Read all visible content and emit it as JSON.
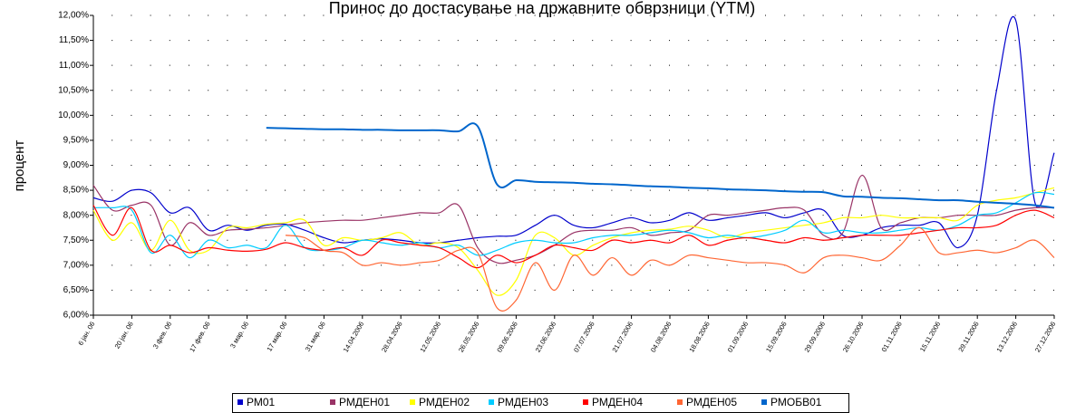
{
  "chart_data": {
    "type": "line",
    "title": "Принос до достасување на државните обврзници (YTM)",
    "y_label": "процент",
    "categories": [
      "6 јан. 06",
      null,
      "20 јан. 06",
      null,
      "3 фев. 06",
      null,
      "17 фев. 06",
      null,
      "3 мар. 06",
      null,
      "17 мар. 06",
      null,
      "31 мар. 06",
      null,
      "14.04.2006",
      null,
      "28.04.2006",
      null,
      "12.05.2006",
      null,
      "26.05.2006",
      null,
      "09.06.2006",
      null,
      "23.06.2006",
      null,
      "07.07.2006",
      null,
      "21.07.2006",
      null,
      "04.08.2006",
      null,
      "18.08.2006",
      null,
      "01.09.2006",
      null,
      "15.09.2006",
      null,
      "29.09.2006",
      null,
      "26.10.2006",
      null,
      "01.11.2006",
      null,
      "15.11.2006",
      null,
      "29.11.2006",
      null,
      "13.12.2006",
      null,
      "27.12.2006"
    ],
    "ylim": [
      6,
      12
    ],
    "yticks": [
      {
        "value": 6,
        "label": "6,00%"
      },
      {
        "value": 6.5,
        "label": "6,50%"
      },
      {
        "value": 7,
        "label": "7,00%"
      },
      {
        "value": 7.5,
        "label": "7,50%"
      },
      {
        "value": 8,
        "label": "8,00%"
      },
      {
        "value": 8.5,
        "label": "8,50%"
      },
      {
        "value": 9,
        "label": "9,00%"
      },
      {
        "value": 9.5,
        "label": "9,50%"
      },
      {
        "value": 10,
        "label": "10,00%"
      },
      {
        "value": 10.5,
        "label": "10,50%"
      },
      {
        "value": 11,
        "label": "11,00%"
      },
      {
        "value": 11.5,
        "label": "11,50%"
      },
      {
        "value": 12,
        "label": "12,00%"
      }
    ],
    "grid": true,
    "legend": "bottom",
    "series": [
      {
        "name": "РМ01",
        "color": "#0000cc",
        "values": [
          8.35,
          8.28,
          8.5,
          8.45,
          8.05,
          8.15,
          7.7,
          7.8,
          7.7,
          7.8,
          7.82,
          7.7,
          7.55,
          7.45,
          7.5,
          7.53,
          7.5,
          7.45,
          7.45,
          7.5,
          7.55,
          7.58,
          7.6,
          7.8,
          8.0,
          7.8,
          7.75,
          7.85,
          7.95,
          7.85,
          7.9,
          8.05,
          7.9,
          7.95,
          8.0,
          8.05,
          7.95,
          8.05,
          8.1,
          7.6,
          7.6,
          7.75,
          7.8,
          7.8,
          7.85,
          7.35,
          8.0,
          10.5,
          11.9,
          8.25,
          9.25
        ]
      },
      {
        "name": "РМДЕН01",
        "color": "#993366",
        "values": [
          8.6,
          8.1,
          8.2,
          8.2,
          7.4,
          7.85,
          7.6,
          7.7,
          7.72,
          7.75,
          7.8,
          7.85,
          7.88,
          7.9,
          7.9,
          7.95,
          8.0,
          8.05,
          8.05,
          8.2,
          7.35,
          7.05,
          7.1,
          7.2,
          7.4,
          7.65,
          7.7,
          7.7,
          7.75,
          7.6,
          7.65,
          7.7,
          8.0,
          8.0,
          8.05,
          8.1,
          8.15,
          8.1,
          7.6,
          7.65,
          8.8,
          7.75,
          7.85,
          7.95,
          7.95,
          8.0,
          8.0,
          8.0,
          8.1,
          8.15,
          8.15
        ]
      },
      {
        "name": "РМДЕН02",
        "color": "#ffff00",
        "values": [
          8.1,
          7.5,
          7.85,
          7.3,
          7.9,
          7.3,
          7.3,
          7.75,
          7.75,
          7.82,
          7.85,
          7.9,
          7.4,
          7.55,
          7.5,
          7.55,
          7.65,
          7.4,
          7.45,
          7.35,
          6.9,
          6.4,
          6.7,
          7.6,
          7.55,
          7.2,
          7.4,
          7.55,
          7.65,
          7.7,
          7.72,
          7.78,
          7.7,
          7.55,
          7.65,
          7.7,
          7.75,
          7.8,
          7.85,
          7.95,
          7.95,
          8.0,
          7.95,
          7.95,
          7.95,
          7.9,
          8.2,
          8.3,
          8.35,
          8.45,
          8.55
        ]
      },
      {
        "name": "РМДЕН03",
        "color": "#00ccff",
        "values": [
          8.15,
          8.15,
          8.1,
          7.25,
          7.6,
          7.15,
          7.5,
          7.35,
          7.4,
          7.35,
          7.8,
          7.35,
          7.3,
          7.35,
          7.5,
          7.45,
          7.4,
          7.45,
          7.35,
          7.4,
          7.2,
          7.3,
          7.45,
          7.5,
          7.45,
          7.45,
          7.55,
          7.6,
          7.6,
          7.65,
          7.7,
          7.65,
          7.55,
          7.6,
          7.55,
          7.6,
          7.7,
          7.9,
          7.65,
          7.7,
          7.65,
          7.65,
          7.7,
          7.75,
          7.7,
          7.8,
          8.0,
          8.05,
          8.25,
          8.45,
          8.42
        ]
      },
      {
        "name": "РМДЕН04",
        "color": "#ff0000",
        "values": [
          8.2,
          7.6,
          8.15,
          7.3,
          7.4,
          7.25,
          7.35,
          7.3,
          7.28,
          7.32,
          7.45,
          7.35,
          7.3,
          7.35,
          7.2,
          7.5,
          7.45,
          7.4,
          7.35,
          7.15,
          6.95,
          7.2,
          7.05,
          7.2,
          7.4,
          7.35,
          7.3,
          7.5,
          7.45,
          7.5,
          7.45,
          7.6,
          7.4,
          7.5,
          7.55,
          7.5,
          7.45,
          7.55,
          7.5,
          7.55,
          7.6,
          7.6,
          7.6,
          7.65,
          7.7,
          7.75,
          7.75,
          7.8,
          8.0,
          8.1,
          7.95
        ]
      },
      {
        "name": "РМДЕН05",
        "color": "#ff6633",
        "values": [
          null,
          null,
          null,
          null,
          null,
          null,
          null,
          null,
          null,
          null,
          7.6,
          7.55,
          7.3,
          7.25,
          7.0,
          7.05,
          7.0,
          7.05,
          7.1,
          7.3,
          7.25,
          6.15,
          6.3,
          7.05,
          6.5,
          7.2,
          6.8,
          7.15,
          6.8,
          7.1,
          7.0,
          7.2,
          7.15,
          7.1,
          7.05,
          7.05,
          7.0,
          6.85,
          7.15,
          7.2,
          7.15,
          7.1,
          7.4,
          7.75,
          7.25,
          7.25,
          7.3,
          7.25,
          7.35,
          7.5,
          7.15
        ]
      },
      {
        "name": "РМОБВ01",
        "color": "#0066cc",
        "values": [
          null,
          null,
          null,
          null,
          null,
          null,
          null,
          null,
          null,
          9.75,
          9.74,
          9.73,
          9.72,
          9.72,
          9.71,
          9.71,
          9.7,
          9.7,
          9.7,
          9.68,
          9.78,
          8.62,
          8.7,
          8.67,
          8.66,
          8.65,
          8.63,
          8.62,
          8.6,
          8.58,
          8.57,
          8.55,
          8.54,
          8.52,
          8.51,
          8.5,
          8.48,
          8.47,
          8.46,
          8.38,
          8.37,
          8.35,
          8.34,
          8.32,
          8.3,
          8.3,
          8.27,
          8.25,
          8.23,
          8.2,
          8.15
        ]
      }
    ]
  }
}
